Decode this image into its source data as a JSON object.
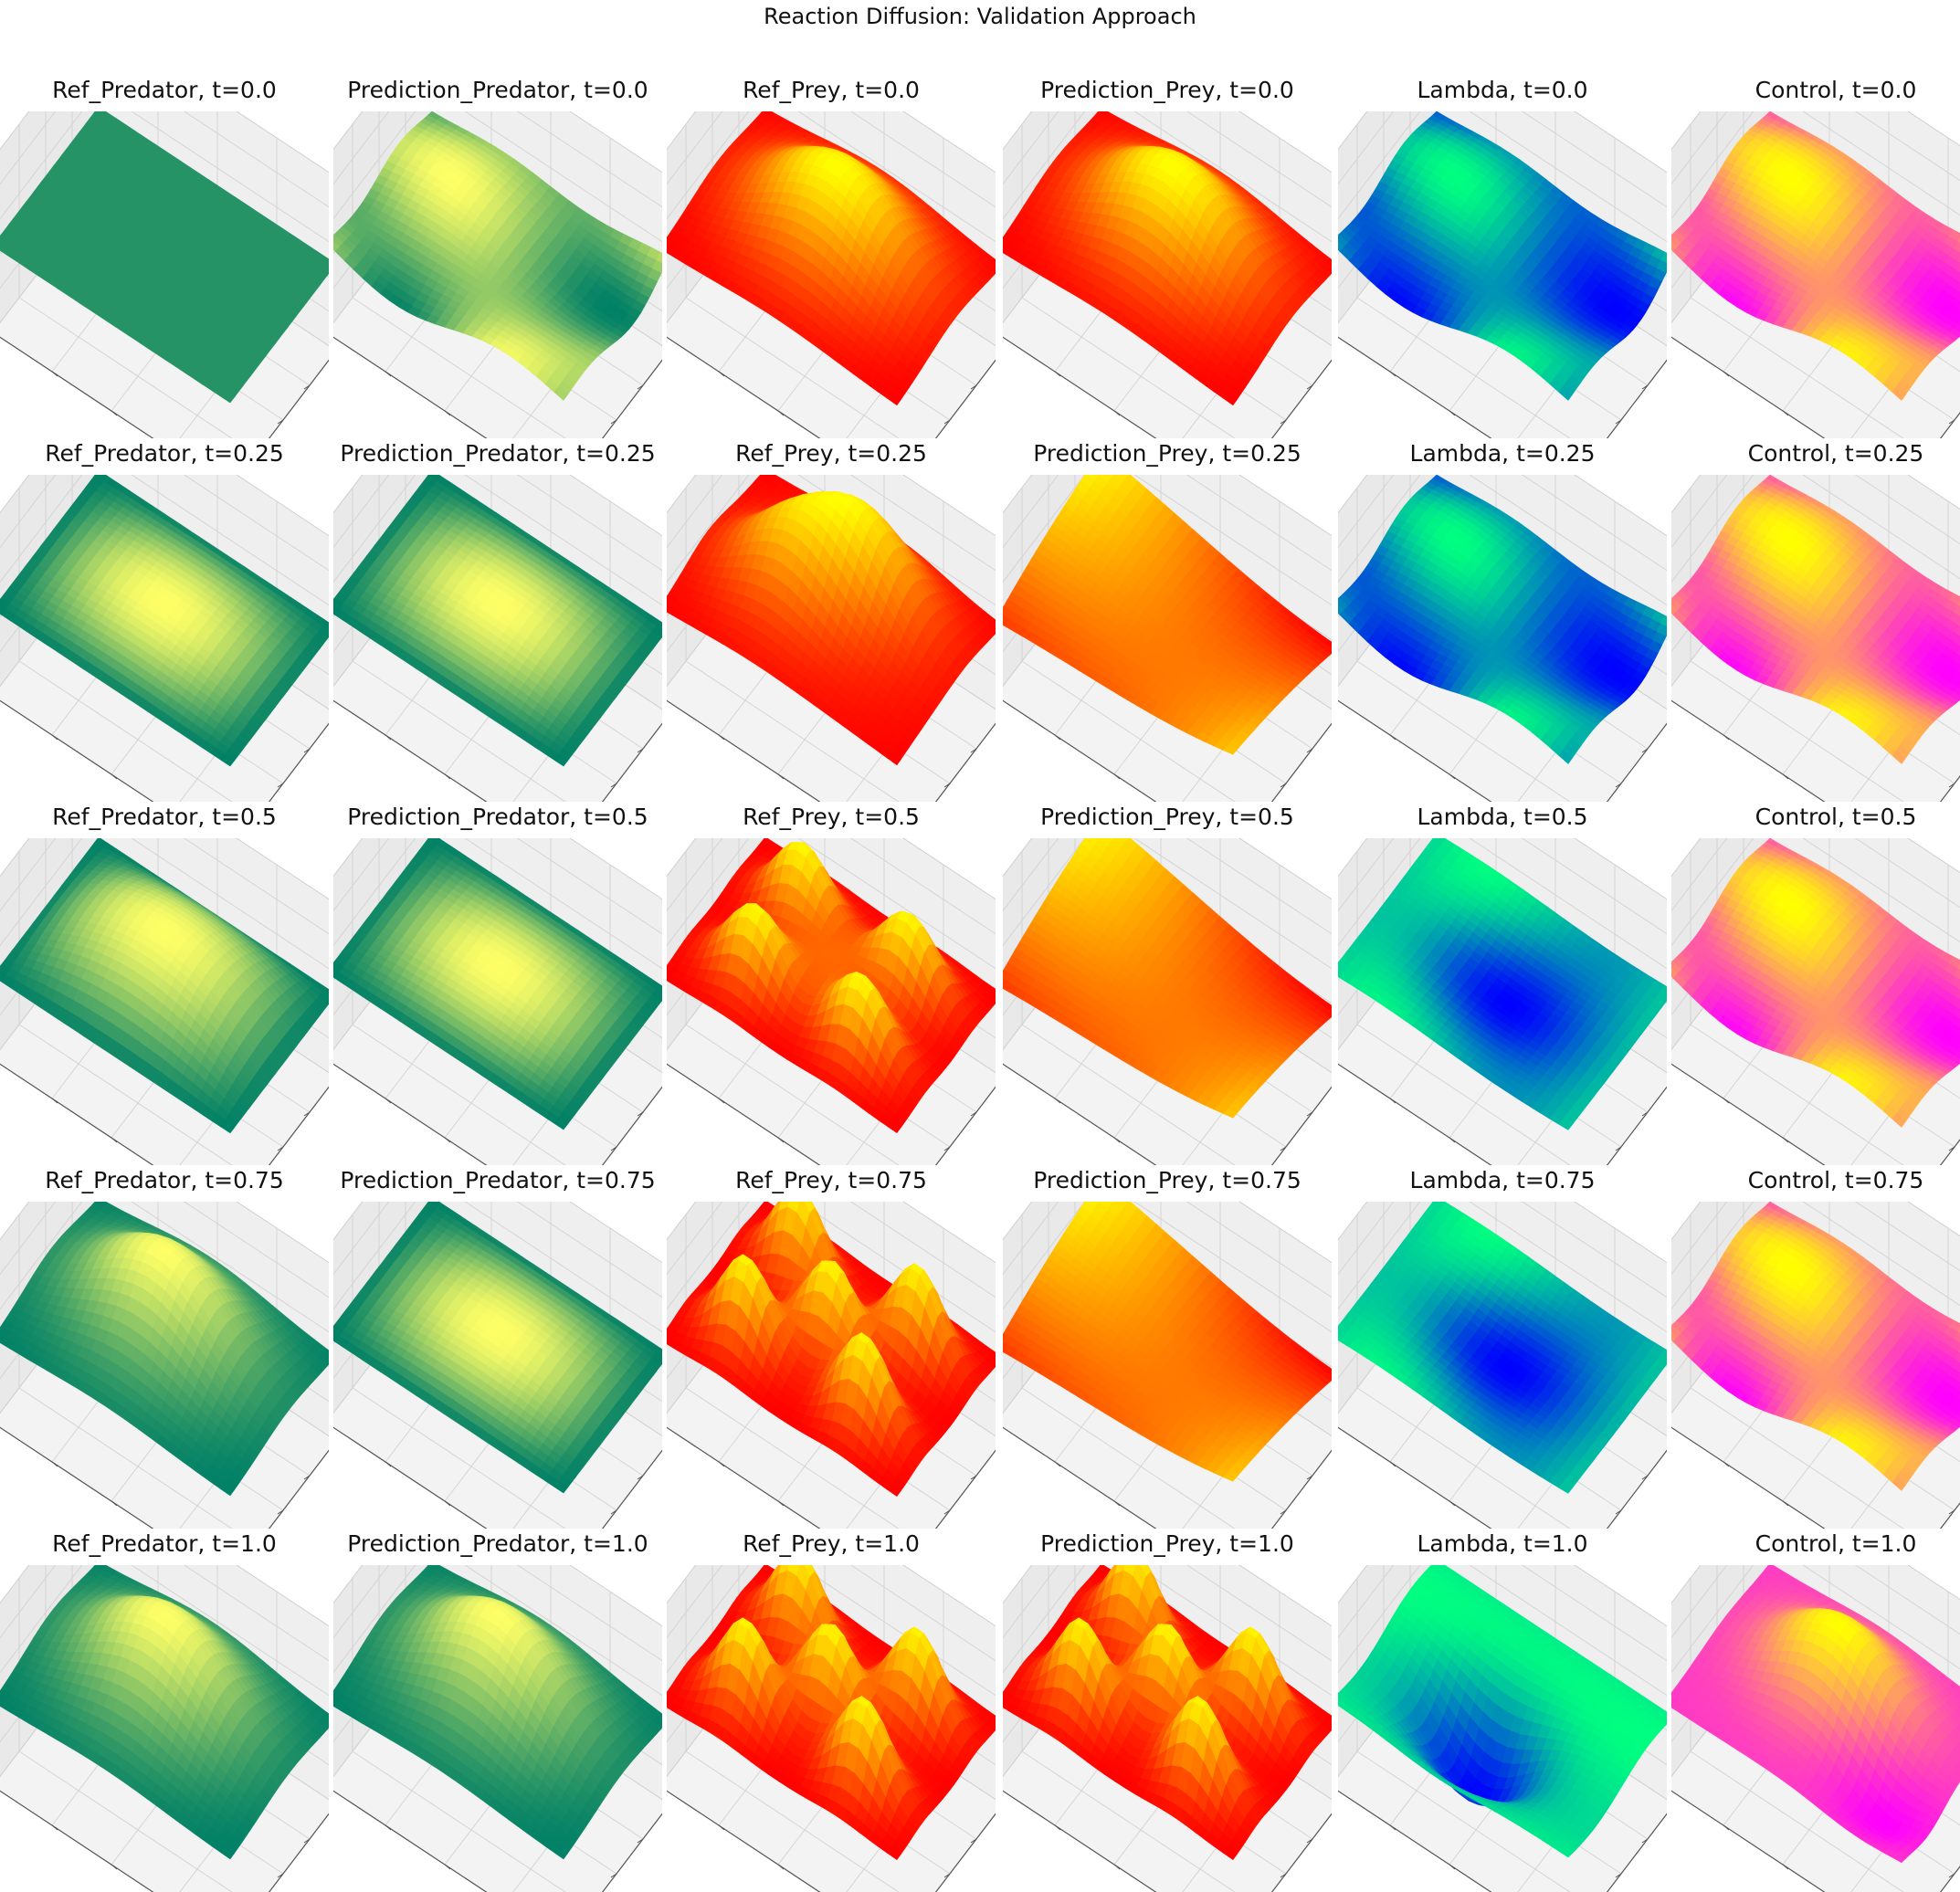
{
  "figure": {
    "title": "Reaction Diffusion: Validation Approach"
  },
  "chart_data": {
    "type": "surface3d",
    "grid": true,
    "tick_labels_visible": false,
    "columns": [
      {
        "name": "Ref_Predator",
        "colormap": "summer",
        "colors": [
          "#008066",
          "#ffff66"
        ]
      },
      {
        "name": "Prediction_Predator",
        "colormap": "summer",
        "colors": [
          "#008066",
          "#ffff66"
        ]
      },
      {
        "name": "Ref_Prey",
        "colormap": "autumn",
        "colors": [
          "#ff0000",
          "#ffff00"
        ]
      },
      {
        "name": "Prediction_Prey",
        "colormap": "autumn",
        "colors": [
          "#ff0000",
          "#ffff00"
        ]
      },
      {
        "name": "Lambda",
        "colormap": "winter",
        "colors": [
          "#0000ff",
          "#00ff80"
        ]
      },
      {
        "name": "Control",
        "colormap": "spring",
        "colors": [
          "#ff00ff",
          "#ffff00"
        ]
      }
    ],
    "times": [
      "0.0",
      "0.25",
      "0.5",
      "0.75",
      "1.0"
    ],
    "panels": [
      {
        "title": "Ref_Predator, t=0.0",
        "field": "flat"
      },
      {
        "title": "Prediction_Predator, t=0.0",
        "field": "bumpy_low"
      },
      {
        "title": "Ref_Prey, t=0.0",
        "field": "gauss_tall"
      },
      {
        "title": "Prediction_Prey, t=0.0",
        "field": "gauss_tall"
      },
      {
        "title": "Lambda, t=0.0",
        "field": "bumpy_low"
      },
      {
        "title": "Control, t=0.0",
        "field": "bumpy_low"
      },
      {
        "title": "Ref_Predator, t=0.25",
        "field": "dome_low"
      },
      {
        "title": "Prediction_Predator, t=0.25",
        "field": "dome_low"
      },
      {
        "title": "Ref_Prey, t=0.25",
        "field": "two_humps"
      },
      {
        "title": "Prediction_Prey, t=0.25",
        "field": "saddle"
      },
      {
        "title": "Lambda, t=0.25",
        "field": "bumpy_low"
      },
      {
        "title": "Control, t=0.25",
        "field": "bumpy_low"
      },
      {
        "title": "Ref_Predator, t=0.5",
        "field": "dome_mid"
      },
      {
        "title": "Prediction_Predator, t=0.5",
        "field": "dome_low"
      },
      {
        "title": "Ref_Prey, t=0.5",
        "field": "four_peaks"
      },
      {
        "title": "Prediction_Prey, t=0.5",
        "field": "saddle"
      },
      {
        "title": "Lambda, t=0.5",
        "field": "bowl_low"
      },
      {
        "title": "Control, t=0.5",
        "field": "bumpy_low"
      },
      {
        "title": "Ref_Predator, t=0.75",
        "field": "dome_high"
      },
      {
        "title": "Prediction_Predator, t=0.75",
        "field": "dome_low"
      },
      {
        "title": "Ref_Prey, t=0.75",
        "field": "five_peaks"
      },
      {
        "title": "Prediction_Prey, t=0.75",
        "field": "saddle"
      },
      {
        "title": "Lambda, t=0.75",
        "field": "bowl_low"
      },
      {
        "title": "Control, t=0.75",
        "field": "bumpy_low"
      },
      {
        "title": "Ref_Predator, t=1.0",
        "field": "dome_high"
      },
      {
        "title": "Prediction_Predator, t=1.0",
        "field": "dome_high"
      },
      {
        "title": "Ref_Prey, t=1.0",
        "field": "five_peaks"
      },
      {
        "title": "Prediction_Prey, t=1.0",
        "field": "five_peaks"
      },
      {
        "title": "Lambda, t=1.0",
        "field": "deep_bowl"
      },
      {
        "title": "Control, t=1.0",
        "field": "control_peak"
      }
    ]
  }
}
